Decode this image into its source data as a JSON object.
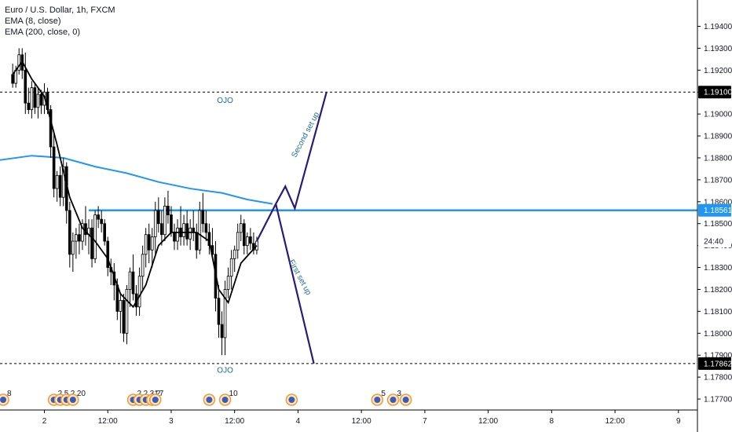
{
  "legend": {
    "symbol": "Euro / U.S. Dollar, 1h, FXCM",
    "ema8": "EMA (8, close)",
    "ema200": "EMA (200, close, 0)"
  },
  "colors": {
    "candle_up": "#ffffff",
    "candle_down": "#000000",
    "ema8": "#000000",
    "ema200": "#2196f3",
    "resistance": "#2196f3",
    "projection": "#2a1a7a",
    "annotation_text": "#1a6e8e",
    "price_label_bg": "#000000"
  },
  "chart_data": {
    "type": "candlestick",
    "symbol": "Euro / U.S. Dollar, 1h, FXCM",
    "y_ticks": [
      1.194,
      1.193,
      1.192,
      1.191,
      1.19,
      1.189,
      1.188,
      1.187,
      1.186,
      1.185,
      1.184,
      1.183,
      1.182,
      1.181,
      1.18,
      1.179,
      1.178,
      1.177
    ],
    "y_tick_labels": [
      "1.19400",
      "1.19300",
      "1.19200",
      "1.19100",
      "1.19000",
      "1.18900",
      "1.18800",
      "1.18700",
      "1.18600",
      "1.18500",
      "1.18400",
      "1.18300",
      "1.18200",
      "1.18100",
      "1.18000",
      "1.17900",
      "1.17800",
      "1.17700"
    ],
    "ylim": [
      1.1765,
      1.1952
    ],
    "x_ticks": [
      {
        "label": "2",
        "bar": 10
      },
      {
        "label": "12:00",
        "bar": 30
      },
      {
        "label": "3",
        "bar": 50
      },
      {
        "label": "12:00",
        "bar": 70
      },
      {
        "label": "4",
        "bar": 90
      },
      {
        "label": "12:00",
        "bar": 110
      },
      {
        "label": "7",
        "bar": 130
      },
      {
        "label": "12:00",
        "bar": 150
      },
      {
        "label": "8",
        "bar": 170
      },
      {
        "label": "12:00",
        "bar": 190
      },
      {
        "label": "9",
        "bar": 210
      }
    ],
    "xlim": [
      -4,
      216
    ],
    "candles": [
      [
        1.1918,
        1.1923,
        1.1912,
        1.1914
      ],
      [
        1.1914,
        1.1922,
        1.1912,
        1.192
      ],
      [
        1.192,
        1.193,
        1.1918,
        1.1927
      ],
      [
        1.1927,
        1.193,
        1.1916,
        1.192
      ],
      [
        1.192,
        1.1928,
        1.19,
        1.1905
      ],
      [
        1.1905,
        1.1912,
        1.19,
        1.1902
      ],
      [
        1.1902,
        1.1915,
        1.1898,
        1.1912
      ],
      [
        1.1912,
        1.1914,
        1.19,
        1.1903
      ],
      [
        1.1903,
        1.1912,
        1.1898,
        1.1909
      ],
      [
        1.1909,
        1.1911,
        1.19,
        1.1904
      ],
      [
        1.1904,
        1.1914,
        1.19,
        1.191
      ],
      [
        1.191,
        1.1912,
        1.19,
        1.1902
      ],
      [
        1.1902,
        1.1904,
        1.188,
        1.1885
      ],
      [
        1.1885,
        1.1892,
        1.1862,
        1.1866
      ],
      [
        1.1866,
        1.1874,
        1.186,
        1.1872
      ],
      [
        1.1872,
        1.1876,
        1.1858,
        1.1862
      ],
      [
        1.1862,
        1.188,
        1.1858,
        1.1876
      ],
      [
        1.1876,
        1.1878,
        1.185,
        1.1856
      ],
      [
        1.1856,
        1.186,
        1.183,
        1.1836
      ],
      [
        1.1836,
        1.1846,
        1.1828,
        1.1842
      ],
      [
        1.1842,
        1.1848,
        1.1834,
        1.1845
      ],
      [
        1.1845,
        1.185,
        1.1836,
        1.1842
      ],
      [
        1.1842,
        1.1852,
        1.1838,
        1.185
      ],
      [
        1.185,
        1.1858,
        1.184,
        1.1845
      ],
      [
        1.1845,
        1.1852,
        1.1836,
        1.1848
      ],
      [
        1.1848,
        1.1852,
        1.183,
        1.1834
      ],
      [
        1.1834,
        1.1856,
        1.1832,
        1.1854
      ],
      [
        1.1854,
        1.1858,
        1.1848,
        1.1852
      ],
      [
        1.1852,
        1.1856,
        1.1846,
        1.185
      ],
      [
        1.185,
        1.1852,
        1.184,
        1.1842
      ],
      [
        1.1842,
        1.1844,
        1.1826,
        1.183
      ],
      [
        1.183,
        1.1834,
        1.1822,
        1.1828
      ],
      [
        1.1828,
        1.1832,
        1.1815,
        1.1822
      ],
      [
        1.1822,
        1.1825,
        1.1806,
        1.181
      ],
      [
        1.181,
        1.1818,
        1.18,
        1.1815
      ],
      [
        1.1815,
        1.1818,
        1.1796,
        1.18
      ],
      [
        1.18,
        1.1822,
        1.1795,
        1.182
      ],
      [
        1.182,
        1.183,
        1.1812,
        1.1828
      ],
      [
        1.1828,
        1.1836,
        1.1815,
        1.1818
      ],
      [
        1.1818,
        1.1822,
        1.1808,
        1.1812
      ],
      [
        1.1812,
        1.183,
        1.1808,
        1.1826
      ],
      [
        1.1826,
        1.184,
        1.182,
        1.1836
      ],
      [
        1.1836,
        1.1848,
        1.183,
        1.1845
      ],
      [
        1.1845,
        1.185,
        1.1832,
        1.1838
      ],
      [
        1.1838,
        1.1848,
        1.183,
        1.1844
      ],
      [
        1.1844,
        1.186,
        1.1836,
        1.1856
      ],
      [
        1.1856,
        1.1862,
        1.1846,
        1.185
      ],
      [
        1.185,
        1.1856,
        1.184,
        1.1845
      ],
      [
        1.1845,
        1.1862,
        1.1842,
        1.1858
      ],
      [
        1.1858,
        1.1865,
        1.185,
        1.1854
      ],
      [
        1.1854,
        1.1858,
        1.1844,
        1.1846
      ],
      [
        1.1846,
        1.185,
        1.1838,
        1.1842
      ],
      [
        1.1842,
        1.1852,
        1.1838,
        1.1848
      ],
      [
        1.1848,
        1.1858,
        1.184,
        1.1844
      ],
      [
        1.1844,
        1.1854,
        1.184,
        1.185
      ],
      [
        1.185,
        1.1856,
        1.184,
        1.1843
      ],
      [
        1.1843,
        1.1852,
        1.1838,
        1.1848
      ],
      [
        1.1848,
        1.1856,
        1.1842,
        1.1846
      ],
      [
        1.1846,
        1.185,
        1.1834,
        1.1838
      ],
      [
        1.1838,
        1.186,
        1.1836,
        1.1856
      ],
      [
        1.1856,
        1.1864,
        1.1846,
        1.185
      ],
      [
        1.185,
        1.1856,
        1.1842,
        1.1846
      ],
      [
        1.1846,
        1.185,
        1.1836,
        1.184
      ],
      [
        1.184,
        1.1848,
        1.1834,
        1.1836
      ],
      [
        1.1836,
        1.1842,
        1.181,
        1.1816
      ],
      [
        1.1816,
        1.1822,
        1.1798,
        1.1804
      ],
      [
        1.1804,
        1.181,
        1.179,
        1.1798
      ],
      [
        1.1798,
        1.1824,
        1.179,
        1.182
      ],
      [
        1.182,
        1.183,
        1.1816,
        1.1826
      ],
      [
        1.1826,
        1.1838,
        1.182,
        1.1834
      ],
      [
        1.1834,
        1.184,
        1.1828,
        1.1838
      ],
      [
        1.1838,
        1.185,
        1.1834,
        1.1846
      ],
      [
        1.1846,
        1.1854,
        1.1842,
        1.185
      ],
      [
        1.185,
        1.1852,
        1.1836,
        1.184
      ],
      [
        1.184,
        1.1846,
        1.1836,
        1.1844
      ],
      [
        1.1844,
        1.1848,
        1.1838,
        1.1841
      ],
      [
        1.1841,
        1.1846,
        1.1836,
        1.1838
      ],
      [
        1.1838,
        1.1844,
        1.1836,
        1.1842
      ]
    ],
    "ema8": [
      [
        0,
        1.1918
      ],
      [
        3,
        1.1924
      ],
      [
        6,
        1.1916
      ],
      [
        10,
        1.1908
      ],
      [
        14,
        1.1886
      ],
      [
        18,
        1.1862
      ],
      [
        22,
        1.1848
      ],
      [
        26,
        1.1842
      ],
      [
        30,
        1.1834
      ],
      [
        34,
        1.1818
      ],
      [
        38,
        1.1812
      ],
      [
        42,
        1.1822
      ],
      [
        46,
        1.184
      ],
      [
        50,
        1.1846
      ],
      [
        54,
        1.1846
      ],
      [
        58,
        1.1846
      ],
      [
        62,
        1.1842
      ],
      [
        65,
        1.182
      ],
      [
        68,
        1.1814
      ],
      [
        72,
        1.1832
      ],
      [
        77,
        1.184
      ]
    ],
    "ema200": [
      [
        -4,
        1.1879
      ],
      [
        6,
        1.1881
      ],
      [
        16,
        1.188
      ],
      [
        26,
        1.1876
      ],
      [
        36,
        1.1873
      ],
      [
        46,
        1.1869
      ],
      [
        56,
        1.1866
      ],
      [
        66,
        1.1864
      ],
      [
        74,
        1.1861
      ],
      [
        82,
        1.1859
      ]
    ],
    "resistance": {
      "level": 1.18561,
      "label": "1.18561",
      "from_bar": 24
    },
    "dashed_levels": [
      {
        "level": 1.191,
        "label": "1.19100"
      },
      {
        "level": 1.17862,
        "label": "1.17862"
      }
    ],
    "current_price_label": "24:40",
    "current_price": 1.1842,
    "projection_up": [
      [
        77,
        1.1842
      ],
      [
        83,
        1.1859
      ],
      [
        86,
        1.1867
      ],
      [
        89,
        1.1857
      ],
      [
        99,
        1.191
      ]
    ],
    "projection_down": [
      [
        83,
        1.1859
      ],
      [
        95,
        1.17862
      ]
    ],
    "annotations": [
      {
        "text": "OJO",
        "bar": 67,
        "price": 1.1905
      },
      {
        "text": "OJO",
        "bar": 67,
        "price": 1.1782
      },
      {
        "text": "Second set up",
        "bar": 93,
        "price": 1.189,
        "angle": -62
      },
      {
        "text": "First set up",
        "bar": 90,
        "price": 1.1825,
        "angle": 62
      }
    ],
    "event_markers": [
      {
        "bar": -3,
        "label": "8"
      },
      {
        "bar": 13,
        "label": "2"
      },
      {
        "bar": 15,
        "label": "5"
      },
      {
        "bar": 17,
        "label": "2"
      },
      {
        "bar": 19,
        "label": "20"
      },
      {
        "bar": 38,
        "label": "2"
      },
      {
        "bar": 40,
        "label": "2"
      },
      {
        "bar": 42,
        "label": "31"
      },
      {
        "bar": 44,
        "label": "2"
      },
      {
        "bar": 45,
        "label": "7"
      },
      {
        "bar": 62,
        "label": ""
      },
      {
        "bar": 67,
        "label": "10"
      },
      {
        "bar": 88,
        "label": ""
      },
      {
        "bar": 115,
        "label": "5"
      },
      {
        "bar": 120,
        "label": "3"
      },
      {
        "bar": 124,
        "label": ""
      }
    ]
  }
}
